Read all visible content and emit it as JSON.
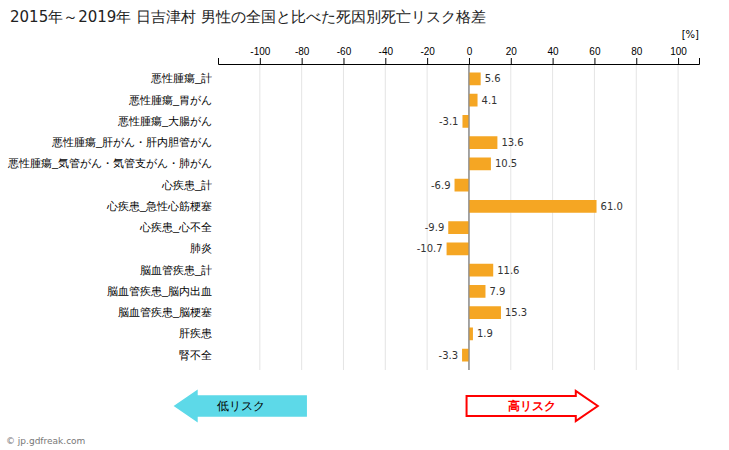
{
  "chart_data": {
    "type": "bar",
    "orientation": "horizontal",
    "title": "2015年～2019年 日吉津村 男性の全国と比べた死因別死亡リスク格差",
    "categories": [
      "悪性腫瘍_計",
      "悪性腫瘍_胃がん",
      "悪性腫瘍_大腸がん",
      "悪性腫瘍_肝がん・肝内胆管がん",
      "悪性腫瘍_気管がん・気管支がん・肺がん",
      "心疾患_計",
      "心疾患_急性心筋梗塞",
      "心疾患_心不全",
      "肺炎",
      "脳血管疾患_計",
      "脳血管疾患_脳内出血",
      "脳血管疾患_脳梗塞",
      "肝疾患",
      "腎不全"
    ],
    "values": [
      5.6,
      4.1,
      -3.1,
      13.6,
      10.5,
      -6.9,
      61.0,
      -9.9,
      -10.7,
      11.6,
      7.9,
      15.3,
      1.9,
      -3.3
    ],
    "value_labels": [
      "5.6",
      "4.1",
      "-3.1",
      "13.6",
      "10.5",
      "-6.9",
      "61.0",
      "-9.9",
      "-10.7",
      "11.6",
      "7.9",
      "15.3",
      "1.9",
      "-3.3"
    ],
    "data_labels": true,
    "color": "#F5A623",
    "xlim": [
      -120,
      110
    ],
    "xticks": [
      -100,
      -80,
      -60,
      -40,
      -20,
      0,
      20,
      40,
      60,
      80,
      100
    ],
    "grid": true,
    "annotations": [
      {
        "text": "[%]"
      },
      {
        "text": "低リスク",
        "color": "#5DD9E8"
      },
      {
        "text": "高リスク",
        "color": "#FF0000"
      },
      {
        "text": "© jp.gdfreak.com"
      }
    ]
  }
}
